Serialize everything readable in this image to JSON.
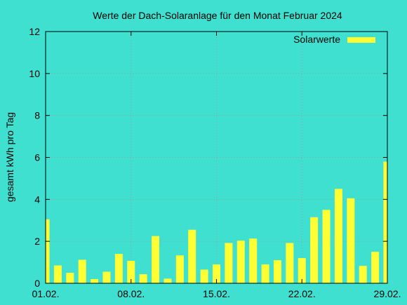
{
  "chart_data": {
    "type": "bar",
    "title": "Werte der Dach-Solaranlage für den Monat Februar 2024",
    "ylabel": "gesamt kWh pro Tag",
    "xlabel": "",
    "ylim": [
      0,
      12
    ],
    "yticks": [
      0,
      2,
      4,
      6,
      8,
      10,
      12
    ],
    "xticks": [
      "01.02.",
      "08.02.",
      "15.02.",
      "22.02.",
      "29.02."
    ],
    "grid": true,
    "legend_position": "top-right",
    "colors": {
      "background": "#40e0d0",
      "bar": "#ffff33"
    },
    "series": [
      {
        "name": "Solarwerte",
        "values": [
          3.05,
          0.85,
          0.5,
          1.12,
          0.2,
          0.55,
          1.4,
          1.07,
          0.43,
          2.25,
          0.22,
          1.33,
          2.55,
          0.65,
          0.9,
          1.92,
          2.03,
          2.13,
          0.9,
          1.1,
          1.92,
          1.2,
          3.15,
          3.5,
          4.5,
          4.05,
          0.83,
          1.5,
          5.8
        ]
      }
    ]
  }
}
